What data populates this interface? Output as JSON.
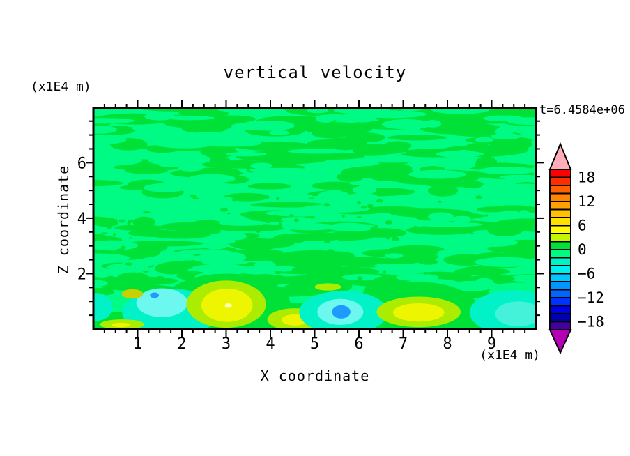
{
  "title": "vertical velocity",
  "time_label": "t=6.4584e+06",
  "axes": {
    "x": {
      "label": "X coordinate",
      "unit_label": "(x1E4 m)",
      "min": 0,
      "max": 10,
      "major_ticks": [
        1,
        2,
        3,
        4,
        5,
        6,
        7,
        8,
        9
      ],
      "minor_step": 0.25
    },
    "z": {
      "label": "Z coordinate",
      "unit_label": "(x1E4 m)",
      "min": 0,
      "max": 7.97,
      "major_ticks": [
        2,
        4,
        6
      ],
      "minor_step": 0.5
    }
  },
  "colorbar": {
    "min": -20,
    "max": 20,
    "step": 2,
    "tick_values": [
      18,
      12,
      6,
      0,
      -6,
      -12,
      -18
    ],
    "tick_labels": [
      "18",
      "12",
      "6",
      "0",
      "−6",
      "−12",
      "−18"
    ],
    "band_colors_top_to_bottom": [
      "#FE0000",
      "#FF2E00",
      "#FF6000",
      "#FF8400",
      "#FFA300",
      "#FFC100",
      "#FFE000",
      "#FFFB00",
      "#C3F500",
      "#00E138",
      "#00FB84",
      "#00F2C6",
      "#00F0F0",
      "#00C8FF",
      "#0096FF",
      "#0064FF",
      "#0032FF",
      "#0000E8",
      "#0000AA",
      "#4600A0"
    ],
    "over_color": "#FFADB9",
    "under_color": "#B400B4"
  },
  "chart_data": {
    "type": "filled_contour_2d",
    "title": "vertical velocity",
    "x_range_x1E4_m": [
      0,
      10
    ],
    "z_range_x1E4_m": [
      0,
      7.97
    ],
    "value_units_step": 2,
    "background": {
      "dominant_band": "-2..0",
      "color": "mint",
      "texture_band": "0..2",
      "texture_color": "green",
      "note": "mottled horizontal streaks of weak +/- velocity fill most of domain"
    },
    "palette": {
      "mint": "#00FB84",
      "green": "#00E138",
      "turquoise": "#00F2C6",
      "pale_cyan": "#6CF8EE",
      "aqua": "#43F2D8",
      "blue": "#1E9BFF",
      "ygreen": "#ACEC00",
      "yellow": "#EEF500",
      "pale_yellow": "#FBFFC0",
      "olive": "#C9CF00"
    },
    "texture": {
      "seed": 13,
      "green_streaks": 240,
      "mint_streaks": 120,
      "specks": 70
    },
    "features": [
      {
        "x": 3.0,
        "z": 0.9,
        "rx": 1.45,
        "rz": 1.1,
        "color": "green",
        "band": "0..2"
      },
      {
        "x": 7.35,
        "z": 0.7,
        "rx": 1.35,
        "rz": 1.0,
        "color": "green",
        "band": "0..2"
      },
      {
        "x": 6.55,
        "z": 0.9,
        "rx": 0.5,
        "rz": 1.0,
        "color": "green",
        "band": "0..2"
      },
      {
        "x": 0.6,
        "z": 0.22,
        "rx": 0.8,
        "rz": 0.4,
        "color": "green",
        "band": "0..2"
      },
      {
        "x": 8.5,
        "z": 0.15,
        "rx": 0.4,
        "rz": 0.25,
        "color": "green",
        "band": "0..2"
      },
      {
        "x": 4.55,
        "z": 0.4,
        "rx": 0.85,
        "rz": 0.55,
        "color": "green",
        "band": "0..2"
      },
      {
        "x": 5.3,
        "z": 1.55,
        "rx": 0.55,
        "rz": 0.28,
        "color": "green",
        "band": "0..2"
      },
      {
        "x": 0.08,
        "z": 0.8,
        "rx": 0.35,
        "rz": 0.5,
        "color": "turquoise",
        "band": "-2..-4"
      },
      {
        "x": 1.75,
        "z": 0.6,
        "rx": 1.1,
        "rz": 0.85,
        "color": "turquoise",
        "band": "-2..-4"
      },
      {
        "x": 1.55,
        "z": 0.95,
        "rx": 0.58,
        "rz": 0.52,
        "color": "pale_cyan",
        "band": "-4..-6"
      },
      {
        "x": 1.38,
        "z": 1.22,
        "rx": 0.1,
        "rz": 0.1,
        "color": "blue",
        "band": "-8..-10"
      },
      {
        "x": 0.88,
        "z": 1.27,
        "rx": 0.24,
        "rz": 0.17,
        "color": "olive",
        "band": "4..6"
      },
      {
        "x": 0.65,
        "z": 0.17,
        "rx": 0.5,
        "rz": 0.18,
        "color": "ygreen",
        "band": "2..4"
      },
      {
        "x": 0.62,
        "z": 0.15,
        "rx": 0.2,
        "rz": 0.08,
        "color": "yellow",
        "band": "4..6"
      },
      {
        "x": 3.0,
        "z": 0.9,
        "rx": 0.9,
        "rz": 0.85,
        "color": "ygreen",
        "band": "2..4"
      },
      {
        "x": 3.02,
        "z": 0.86,
        "rx": 0.58,
        "rz": 0.6,
        "color": "yellow",
        "band": "4..6"
      },
      {
        "x": 3.05,
        "z": 0.85,
        "rx": 0.08,
        "rz": 0.08,
        "color": "pale_yellow",
        "band": "6..8"
      },
      {
        "x": 4.55,
        "z": 0.35,
        "rx": 0.62,
        "rz": 0.4,
        "color": "ygreen",
        "band": "2..4"
      },
      {
        "x": 4.55,
        "z": 0.33,
        "rx": 0.3,
        "rz": 0.2,
        "color": "yellow",
        "band": "4..6"
      },
      {
        "x": 5.65,
        "z": 0.6,
        "rx": 1.0,
        "rz": 0.78,
        "color": "turquoise",
        "band": "-2..-4"
      },
      {
        "x": 5.58,
        "z": 0.62,
        "rx": 0.52,
        "rz": 0.47,
        "color": "pale_cyan",
        "band": "-4..-6"
      },
      {
        "x": 5.6,
        "z": 0.62,
        "rx": 0.21,
        "rz": 0.24,
        "color": "blue",
        "band": "-8..-10"
      },
      {
        "x": 5.3,
        "z": 1.52,
        "rx": 0.3,
        "rz": 0.13,
        "color": "ygreen",
        "band": "2..4"
      },
      {
        "x": 7.35,
        "z": 0.62,
        "rx": 0.95,
        "rz": 0.55,
        "color": "ygreen",
        "band": "2..4"
      },
      {
        "x": 7.35,
        "z": 0.6,
        "rx": 0.58,
        "rz": 0.33,
        "color": "yellow",
        "band": "4..6"
      },
      {
        "x": 9.5,
        "z": 0.6,
        "rx": 1.0,
        "rz": 0.8,
        "color": "turquoise",
        "band": "-2..-4"
      },
      {
        "x": 9.6,
        "z": 0.55,
        "rx": 0.52,
        "rz": 0.45,
        "color": "aqua",
        "band": "-4..-6"
      }
    ]
  }
}
